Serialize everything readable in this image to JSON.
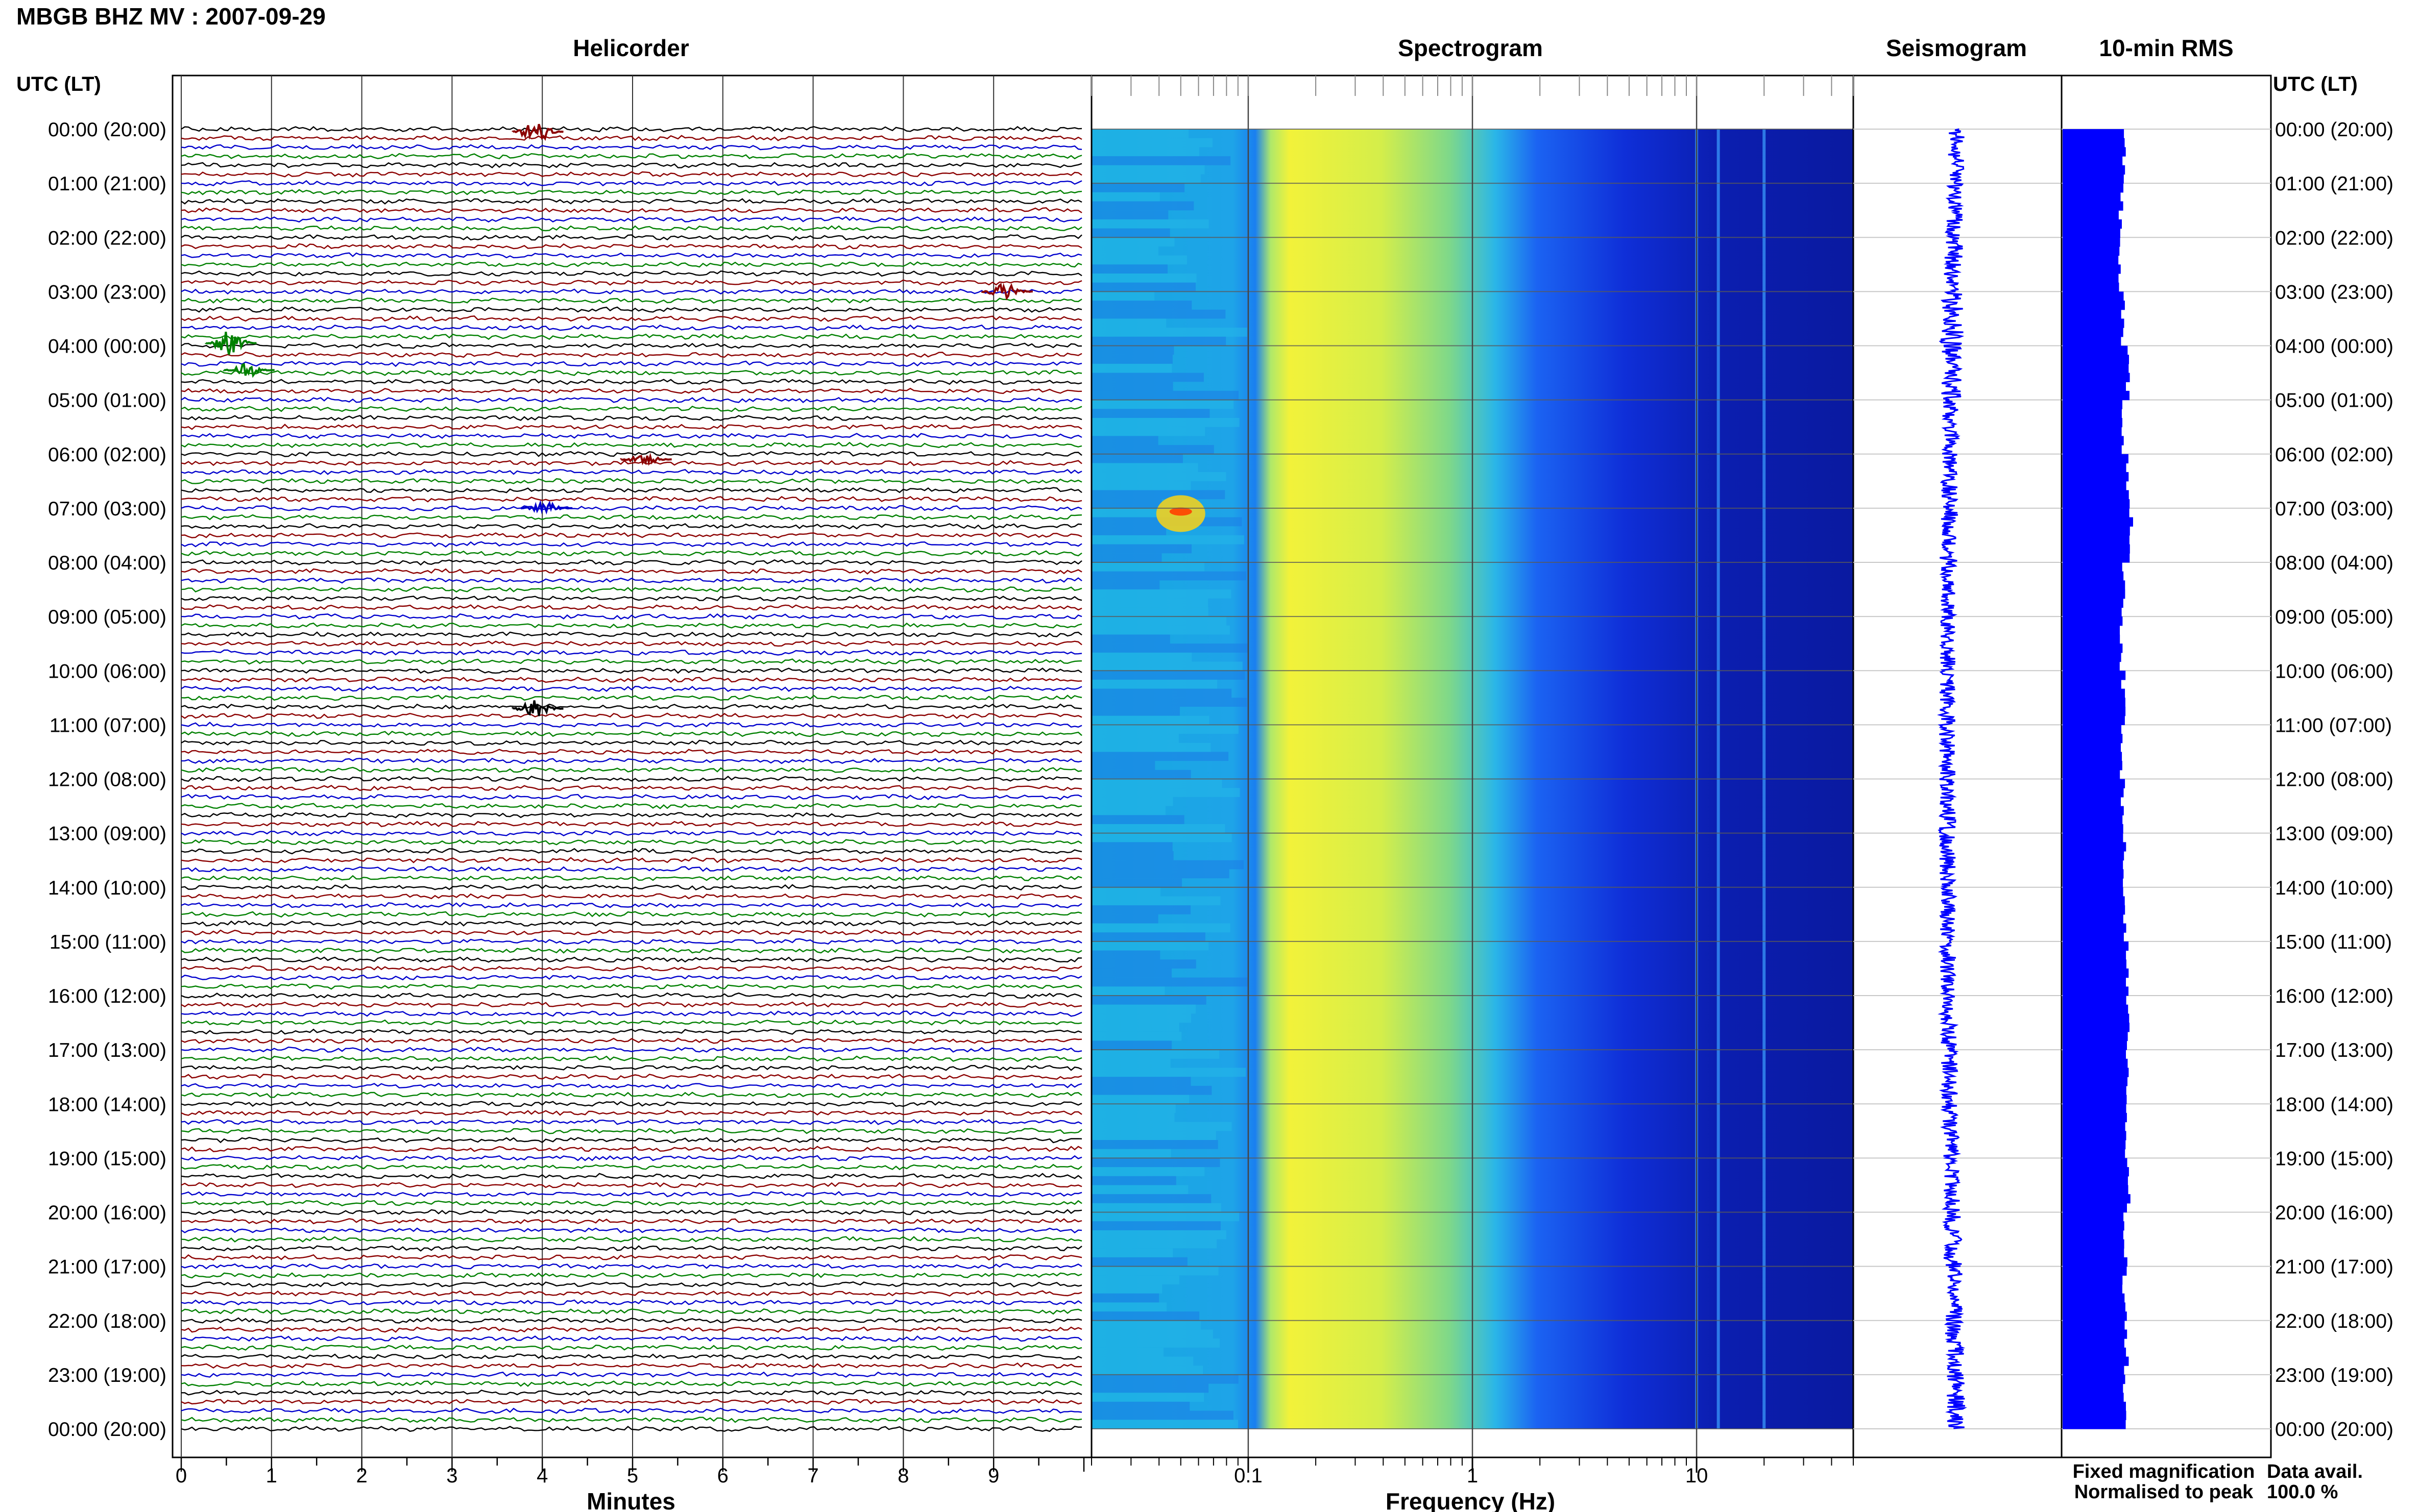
{
  "title": "MBGB BHZ MV : 2007-09-29",
  "utc_header": "UTC (LT)",
  "panels": {
    "helicorder": "Helicorder",
    "spectrogram": "Spectrogram",
    "seismogram": "Seismogram",
    "rms": "10-min RMS"
  },
  "hour_labels": [
    "00:00 (20:00)",
    "01:00 (21:00)",
    "02:00 (22:00)",
    "03:00 (23:00)",
    "04:00 (00:00)",
    "05:00 (01:00)",
    "06:00 (02:00)",
    "07:00 (03:00)",
    "08:00 (04:00)",
    "09:00 (05:00)",
    "10:00 (06:00)",
    "11:00 (07:00)",
    "12:00 (08:00)",
    "13:00 (09:00)",
    "14:00 (10:00)",
    "15:00 (11:00)",
    "16:00 (12:00)",
    "17:00 (13:00)",
    "18:00 (14:00)",
    "19:00 (15:00)",
    "20:00 (16:00)",
    "21:00 (17:00)",
    "22:00 (18:00)",
    "23:00 (19:00)",
    "00:00 (20:00)"
  ],
  "x_axes": {
    "helicorder": {
      "label": "Minutes",
      "ticks": [
        "0",
        "1",
        "2",
        "3",
        "4",
        "5",
        "6",
        "7",
        "8",
        "9"
      ]
    },
    "spectrogram": {
      "label": "Frequency (Hz)",
      "ticks": [
        "0.1",
        "1",
        "10"
      ],
      "scale": "log"
    }
  },
  "legend": {
    "fixed": "Fixed magnification",
    "normalised": "Normalised to peak",
    "fixed_color": "#0000ff",
    "normalised_color": "#ff0000"
  },
  "data_avail": {
    "label": "Data avail.",
    "value": "100.0 %"
  },
  "colors": {
    "trace_cycle": [
      "#000000",
      "#8b0000",
      "#0000cd",
      "#008000"
    ],
    "rms_bar": "#0000ff",
    "seismogram": "#0000ff",
    "grid": "#9a9a9a"
  },
  "chart_data": [
    {
      "type": "line",
      "name": "helicorder",
      "xlabel": "Minutes",
      "xlim": [
        0,
        10
      ],
      "rows": 144,
      "row_minutes": 10,
      "events": [
        {
          "hour": 0.05,
          "minute": 3.9,
          "amplitude": 2.5,
          "color": "#8b0000"
        },
        {
          "hour": 3.0,
          "minute": 9.1,
          "amplitude": 2.0,
          "color": "#8b0000"
        },
        {
          "hour": 3.95,
          "minute": 0.5,
          "amplitude": 3.0,
          "color": "#008000"
        },
        {
          "hour": 4.45,
          "minute": 0.7,
          "amplitude": 1.5,
          "color": "#008000"
        },
        {
          "hour": 6.1,
          "minute": 5.1,
          "amplitude": 1.2,
          "color": "#8b0000"
        },
        {
          "hour": 7.0,
          "minute": 4.0,
          "amplitude": 1.3,
          "color": "#0000cd"
        },
        {
          "hour": 10.7,
          "minute": 3.9,
          "amplitude": 2.0,
          "color": "#000000"
        }
      ]
    },
    {
      "type": "heatmap",
      "name": "spectrogram",
      "xlabel": "Frequency (Hz)",
      "xscale": "log",
      "xlim": [
        0.02,
        50
      ],
      "ylim_hours": [
        0,
        24
      ],
      "colormap": [
        "#00008b",
        "#0000ff",
        "#0080ff",
        "#00e0ff",
        "#80ff80",
        "#ffff00",
        "#ff8000",
        "#ff0000"
      ],
      "peak_band_hz": [
        0.15,
        0.5
      ],
      "notable_lines_hz": [
        10,
        12.5,
        20
      ],
      "hot_spot": {
        "hour": 7.1,
        "freq_hz": 0.05
      }
    },
    {
      "type": "line",
      "name": "seismogram",
      "ylim_hours": [
        0,
        24
      ],
      "amplitude": [
        0.4,
        0.4,
        0.45,
        0.6,
        0.5,
        0.4,
        0.4,
        0.45,
        0.4,
        0.4,
        0.4,
        0.4,
        0.4,
        0.4,
        0.4,
        0.4,
        0.4,
        0.4,
        0.4,
        0.4,
        0.45,
        0.45,
        0.45,
        0.45
      ]
    },
    {
      "type": "bar",
      "name": "10-min RMS",
      "orientation": "horizontal",
      "ylim_hours": [
        0,
        24
      ],
      "hourly_values": [
        1.45,
        1.4,
        1.38,
        1.45,
        1.55,
        1.4,
        1.55,
        1.65,
        1.45,
        1.42,
        1.45,
        1.42,
        1.45,
        1.48,
        1.5,
        1.52,
        1.55,
        1.55,
        1.52,
        1.58,
        1.5,
        1.48,
        1.52,
        1.5
      ],
      "xlim": [
        0,
        5
      ]
    }
  ]
}
